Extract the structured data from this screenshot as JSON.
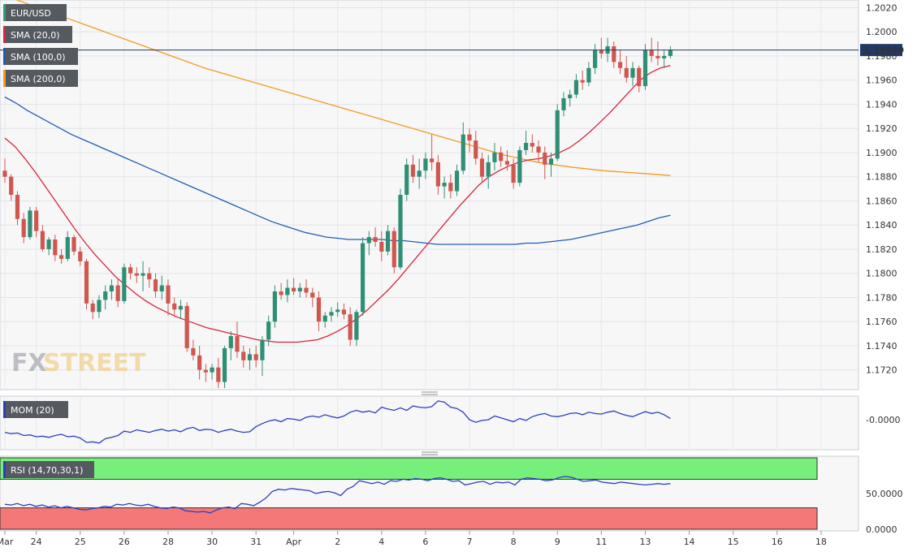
{
  "chart_data": [
    {
      "type": "candlestick",
      "pair": "EUR/USD",
      "overlays": [
        "SMA (20,0)",
        "SMA (100,0)",
        "SMA (200,0)"
      ],
      "current_price": "1.19849",
      "ylim": [
        1.1705,
        1.2025
      ],
      "yticks": [
        {
          "v": 1.202,
          "label": "1.2020"
        },
        {
          "v": 1.2,
          "label": "1.2000"
        },
        {
          "v": 1.198,
          "label": "1.1980"
        },
        {
          "v": 1.196,
          "label": "1.1960"
        },
        {
          "v": 1.194,
          "label": "1.1940"
        },
        {
          "v": 1.192,
          "label": "1.1920"
        },
        {
          "v": 1.19,
          "label": "1.1900"
        },
        {
          "v": 1.188,
          "label": "1.1880"
        },
        {
          "v": 1.186,
          "label": "1.1860"
        },
        {
          "v": 1.184,
          "label": "1.1840"
        },
        {
          "v": 1.182,
          "label": "1.1820"
        },
        {
          "v": 1.18,
          "label": "1.1800"
        },
        {
          "v": 1.178,
          "label": "1.1780"
        },
        {
          "v": 1.176,
          "label": "1.1760"
        },
        {
          "v": 1.174,
          "label": "1.1740"
        },
        {
          "v": 1.172,
          "label": "1.1720"
        }
      ],
      "xticks": [
        {
          "i": 0,
          "label": "Mar"
        },
        {
          "i": 5,
          "label": "24"
        },
        {
          "i": 12,
          "label": "25"
        },
        {
          "i": 19,
          "label": "26"
        },
        {
          "i": 26,
          "label": "28"
        },
        {
          "i": 33,
          "label": "30"
        },
        {
          "i": 40,
          "label": "31"
        },
        {
          "i": 46,
          "label": "Apr"
        },
        {
          "i": 53,
          "label": "2"
        },
        {
          "i": 60,
          "label": "4"
        },
        {
          "i": 67,
          "label": "6"
        },
        {
          "i": 74,
          "label": "7"
        },
        {
          "i": 81,
          "label": "8"
        },
        {
          "i": 88,
          "label": "9"
        },
        {
          "i": 95,
          "label": "11"
        },
        {
          "i": 102,
          "label": "13"
        },
        {
          "i": 109,
          "label": "14"
        },
        {
          "i": 116,
          "label": "15"
        },
        {
          "i": 123,
          "label": "16"
        },
        {
          "i": 130,
          "label": "18"
        }
      ],
      "candles": [
        [
          1.1885,
          1.1895,
          1.1875,
          1.188
        ],
        [
          1.188,
          1.1882,
          1.186,
          1.1865
        ],
        [
          1.1865,
          1.1868,
          1.184,
          1.1845
        ],
        [
          1.1845,
          1.185,
          1.1825,
          1.183
        ],
        [
          1.183,
          1.1855,
          1.1828,
          1.1852
        ],
        [
          1.1852,
          1.1855,
          1.183,
          1.1835
        ],
        [
          1.1835,
          1.184,
          1.1818,
          1.182
        ],
        [
          1.182,
          1.183,
          1.1815,
          1.1828
        ],
        [
          1.1828,
          1.1832,
          1.181,
          1.1815
        ],
        [
          1.1815,
          1.182,
          1.1808,
          1.1812
        ],
        [
          1.1812,
          1.1835,
          1.181,
          1.183
        ],
        [
          1.183,
          1.1832,
          1.1815,
          1.1818
        ],
        [
          1.1818,
          1.1822,
          1.1806,
          1.181
        ],
        [
          1.181,
          1.1812,
          1.177,
          1.1775
        ],
        [
          1.1775,
          1.1778,
          1.1762,
          1.1768
        ],
        [
          1.1768,
          1.1782,
          1.1763,
          1.1778
        ],
        [
          1.1778,
          1.179,
          1.177,
          1.1785
        ],
        [
          1.1785,
          1.1795,
          1.1778,
          1.179
        ],
        [
          1.179,
          1.1795,
          1.1772,
          1.1777
        ],
        [
          1.1777,
          1.1808,
          1.1775,
          1.1805
        ],
        [
          1.1805,
          1.1808,
          1.1795,
          1.18
        ],
        [
          1.18,
          1.1805,
          1.1792,
          1.1798
        ],
        [
          1.1798,
          1.181,
          1.1785,
          1.18
        ],
        [
          1.18,
          1.1805,
          1.1788,
          1.1795
        ],
        [
          1.1795,
          1.18,
          1.178,
          1.1785
        ],
        [
          1.1785,
          1.1798,
          1.1778,
          1.179
        ],
        [
          1.179,
          1.1795,
          1.1765,
          1.1775
        ],
        [
          1.1775,
          1.178,
          1.1765,
          1.177
        ],
        [
          1.177,
          1.1778,
          1.1762,
          1.1773
        ],
        [
          1.1773,
          1.1776,
          1.1735,
          1.1738
        ],
        [
          1.1738,
          1.1745,
          1.1728,
          1.1732
        ],
        [
          1.1732,
          1.174,
          1.1712,
          1.172
        ],
        [
          1.172,
          1.1725,
          1.171,
          1.1718
        ],
        [
          1.1718,
          1.1725,
          1.1712,
          1.1722
        ],
        [
          1.1722,
          1.173,
          1.1705,
          1.171
        ],
        [
          1.171,
          1.174,
          1.1705,
          1.1738
        ],
        [
          1.1738,
          1.1752,
          1.1728,
          1.1748
        ],
        [
          1.1748,
          1.176,
          1.173,
          1.1735
        ],
        [
          1.1735,
          1.174,
          1.1722,
          1.1728
        ],
        [
          1.1728,
          1.1738,
          1.172,
          1.1733
        ],
        [
          1.1733,
          1.174,
          1.1722,
          1.1728
        ],
        [
          1.1728,
          1.1748,
          1.1715,
          1.1745
        ],
        [
          1.1745,
          1.1765,
          1.174,
          1.176
        ],
        [
          1.176,
          1.179,
          1.1755,
          1.1785
        ],
        [
          1.1785,
          1.1792,
          1.1778,
          1.1782
        ],
        [
          1.1782,
          1.1795,
          1.1776,
          1.1788
        ],
        [
          1.1788,
          1.1796,
          1.1782,
          1.1785
        ],
        [
          1.1785,
          1.1792,
          1.178,
          1.1788
        ],
        [
          1.1788,
          1.1795,
          1.178,
          1.1784
        ],
        [
          1.1784,
          1.1788,
          1.1772,
          1.178
        ],
        [
          1.178,
          1.1785,
          1.1752,
          1.176
        ],
        [
          1.176,
          1.1768,
          1.1755,
          1.1765
        ],
        [
          1.1765,
          1.1772,
          1.176,
          1.1768
        ],
        [
          1.1768,
          1.1776,
          1.1764,
          1.177
        ],
        [
          1.177,
          1.1775,
          1.1762,
          1.1766
        ],
        [
          1.1766,
          1.1772,
          1.174,
          1.1745
        ],
        [
          1.1745,
          1.177,
          1.174,
          1.1768
        ],
        [
          1.1768,
          1.183,
          1.1765,
          1.1825
        ],
        [
          1.1825,
          1.1835,
          1.1815,
          1.183
        ],
        [
          1.183,
          1.1838,
          1.1822,
          1.1826
        ],
        [
          1.1826,
          1.1835,
          1.181,
          1.1818
        ],
        [
          1.1818,
          1.184,
          1.1815,
          1.1835
        ],
        [
          1.1835,
          1.1838,
          1.18,
          1.1805
        ],
        [
          1.1805,
          1.187,
          1.1803,
          1.1865
        ],
        [
          1.1865,
          1.1895,
          1.186,
          1.189
        ],
        [
          1.189,
          1.1898,
          1.1875,
          1.188
        ],
        [
          1.188,
          1.1895,
          1.187,
          1.1885
        ],
        [
          1.1885,
          1.19,
          1.1878,
          1.1895
        ],
        [
          1.1895,
          1.1915,
          1.1885,
          1.1892
        ],
        [
          1.1892,
          1.1898,
          1.1865,
          1.1872
        ],
        [
          1.1872,
          1.188,
          1.1862,
          1.1875
        ],
        [
          1.1875,
          1.1882,
          1.1862,
          1.1868
        ],
        [
          1.1868,
          1.189,
          1.1864,
          1.1885
        ],
        [
          1.1885,
          1.1925,
          1.1882,
          1.1915
        ],
        [
          1.1915,
          1.192,
          1.19,
          1.191
        ],
        [
          1.191,
          1.1918,
          1.189,
          1.1895
        ],
        [
          1.1895,
          1.19,
          1.1875,
          1.188
        ],
        [
          1.188,
          1.1898,
          1.187,
          1.1892
        ],
        [
          1.1892,
          1.1908,
          1.1885,
          1.19
        ],
        [
          1.19,
          1.1905,
          1.1888,
          1.1893
        ],
        [
          1.1893,
          1.1902,
          1.1885,
          1.189
        ],
        [
          1.189,
          1.1895,
          1.187,
          1.1875
        ],
        [
          1.1875,
          1.1905,
          1.1872,
          1.1902
        ],
        [
          1.1902,
          1.1918,
          1.1898,
          1.1908
        ],
        [
          1.1908,
          1.1915,
          1.19,
          1.1905
        ],
        [
          1.1905,
          1.191,
          1.1892,
          1.19
        ],
        [
          1.19,
          1.1905,
          1.1878,
          1.189
        ],
        [
          1.189,
          1.19,
          1.188,
          1.1895
        ],
        [
          1.1895,
          1.194,
          1.1893,
          1.1935
        ],
        [
          1.1935,
          1.195,
          1.193,
          1.1945
        ],
        [
          1.1945,
          1.1952,
          1.1938,
          1.1948
        ],
        [
          1.1948,
          1.1965,
          1.1945,
          1.196
        ],
        [
          1.196,
          1.1968,
          1.1952,
          1.1958
        ],
        [
          1.1958,
          1.1975,
          1.1955,
          1.197
        ],
        [
          1.197,
          1.199,
          1.1965,
          1.1985
        ],
        [
          1.1985,
          1.1995,
          1.1978,
          1.1982
        ],
        [
          1.1982,
          1.1995,
          1.1975,
          1.1988
        ],
        [
          1.1988,
          1.1992,
          1.197,
          1.1975
        ],
        [
          1.1975,
          1.1985,
          1.1965,
          1.197
        ],
        [
          1.197,
          1.198,
          1.1958,
          1.1962
        ],
        [
          1.1962,
          1.1975,
          1.1955,
          1.197
        ],
        [
          1.197,
          1.1972,
          1.195,
          1.1955
        ],
        [
          1.1955,
          1.199,
          1.1952,
          1.1985
        ],
        [
          1.1985,
          1.1995,
          1.1975,
          1.198
        ],
        [
          1.198,
          1.1992,
          1.1972,
          1.1978
        ],
        [
          1.1978,
          1.1985,
          1.197,
          1.198
        ],
        [
          1.198,
          1.1988,
          1.1978,
          1.1985
        ]
      ],
      "sma20": [
        1.1912,
        1.1905,
        1.1895,
        1.1884,
        1.1872,
        1.186,
        1.1848,
        1.1836,
        1.1825,
        1.1815,
        1.1806,
        1.1797,
        1.179,
        1.1783,
        1.1777,
        1.1772,
        1.1768,
        1.1764,
        1.1761,
        1.1758,
        1.1755,
        1.1753,
        1.1751,
        1.1749,
        1.1747,
        1.1745,
        1.1744,
        1.1743,
        1.1743,
        1.1743,
        1.1744,
        1.1745,
        1.1748,
        1.1752,
        1.1757,
        1.1763,
        1.177,
        1.1778,
        1.1786,
        1.1795,
        1.1805,
        1.1815,
        1.1825,
        1.1835,
        1.1845,
        1.1855,
        1.1864,
        1.1873,
        1.188,
        1.1885,
        1.1889,
        1.1892,
        1.1894,
        1.1895,
        1.1897,
        1.19,
        1.1904,
        1.191,
        1.1917,
        1.1925,
        1.1933,
        1.1942,
        1.1951,
        1.196,
        1.1966,
        1.197,
        1.1972
      ],
      "sma100": [
        1.1946,
        1.1941,
        1.1935,
        1.193,
        1.1925,
        1.192,
        1.1915,
        1.1911,
        1.1907,
        1.1903,
        1.1899,
        1.1895,
        1.1891,
        1.1887,
        1.1883,
        1.1879,
        1.1875,
        1.1871,
        1.1867,
        1.1863,
        1.1859,
        1.1855,
        1.1851,
        1.1847,
        1.1843,
        1.184,
        1.1837,
        1.1834,
        1.1832,
        1.183,
        1.1829,
        1.1828,
        1.1828,
        1.1828,
        1.1828,
        1.1827,
        1.1827,
        1.1826,
        1.1825,
        1.1824,
        1.1824,
        1.1824,
        1.1824,
        1.1824,
        1.1824,
        1.1824,
        1.1824,
        1.1825,
        1.1825,
        1.1826,
        1.1827,
        1.1828,
        1.183,
        1.1832,
        1.1834,
        1.1836,
        1.1838,
        1.184,
        1.1843,
        1.1846,
        1.1848
      ],
      "sma200": [
        1.203,
        1.202,
        1.201,
        1.2,
        1.199,
        1.198,
        1.197,
        1.1962,
        1.1954,
        1.1946,
        1.1938,
        1.193,
        1.1922,
        1.1914,
        1.1906,
        1.1898,
        1.1892,
        1.1888,
        1.1885,
        1.1883,
        1.1881
      ]
    },
    {
      "type": "line",
      "name": "MOM (20)",
      "yticks": [
        {
          "v": 0,
          "label": "-0.0000"
        }
      ],
      "ylim": [
        -0.0045,
        0.0035
      ],
      "values": [
        -0.002,
        -0.0022,
        -0.0021,
        -0.0025,
        -0.0024,
        -0.0027,
        -0.0026,
        -0.0028,
        -0.0025,
        -0.0023,
        -0.0027,
        -0.0026,
        -0.0029,
        -0.0036,
        -0.0035,
        -0.0037,
        -0.003,
        -0.0028,
        -0.0025,
        -0.0018,
        -0.002,
        -0.0016,
        -0.0018,
        -0.002,
        -0.0017,
        -0.0015,
        -0.0018,
        -0.0016,
        -0.0019,
        -0.0014,
        -0.0012,
        -0.0017,
        -0.0015,
        -0.0016,
        -0.002,
        -0.0017,
        -0.0015,
        -0.0018,
        -0.002,
        -0.0019,
        -0.0011,
        -0.0006,
        -0.0002,
        0.0,
        -0.0003,
        0.0002,
        0.0001,
        -0.0001,
        0.0004,
        0.0006,
        0.0004,
        0.0008,
        0.0005,
        0.0003,
        0.0006,
        0.0012,
        0.0015,
        0.0012,
        0.0014,
        0.0011,
        0.002,
        0.0017,
        0.0015,
        0.0019,
        0.0015,
        0.0022,
        0.002,
        0.0019,
        0.0021,
        0.003,
        0.0028,
        0.002,
        0.0018,
        0.0012,
        0.0,
        -0.0004,
        -0.0001,
        0.0,
        0.0006,
        0.0003,
        0.0,
        -0.0003,
        0.0002,
        -0.0001,
        0.0005,
        0.0008,
        0.001,
        0.0006,
        0.0005,
        0.0007,
        0.001,
        0.0011,
        0.0008,
        0.0012,
        0.001,
        0.0009,
        0.0012,
        0.0014,
        0.001,
        0.0007,
        0.0005,
        0.0009,
        0.0013,
        0.001,
        0.0012,
        0.0008,
        0.0002
      ]
    },
    {
      "type": "line",
      "name": "RSI (14,70,30,1)",
      "ylim": [
        0,
        100
      ],
      "overbought": 70,
      "oversold": 30,
      "yticks": [
        {
          "v": 50,
          "label": "50.0000"
        },
        {
          "v": 0,
          "label": "0.0000"
        }
      ],
      "values": [
        35,
        34,
        36,
        33,
        35,
        32,
        34,
        31,
        33,
        30,
        32,
        30,
        28,
        27,
        29,
        30,
        32,
        31,
        35,
        34,
        36,
        34,
        33,
        35,
        32,
        30,
        29,
        31,
        30,
        26,
        25,
        24,
        25,
        23,
        27,
        30,
        31,
        29,
        36,
        35,
        33,
        38,
        44,
        53,
        56,
        55,
        57,
        56,
        55,
        54,
        50,
        52,
        53,
        51,
        47,
        56,
        60,
        68,
        66,
        64,
        66,
        63,
        68,
        67,
        70,
        69,
        71,
        70,
        68,
        71,
        72,
        70,
        67,
        68,
        62,
        64,
        66,
        67,
        63,
        66,
        65,
        66,
        62,
        70,
        72,
        71,
        70,
        68,
        69,
        72,
        74,
        73,
        70,
        67,
        68,
        69,
        66,
        65,
        64,
        66,
        65,
        64,
        63,
        62,
        63,
        64,
        63,
        64
      ]
    }
  ],
  "watermark": {
    "part1": "FX",
    "part2": "STREET"
  }
}
